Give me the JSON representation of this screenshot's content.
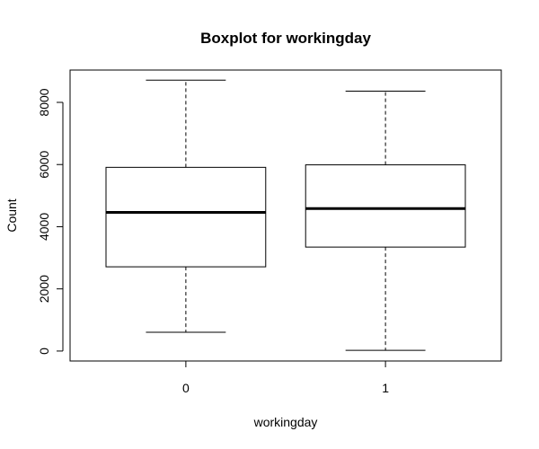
{
  "chart_data": {
    "type": "boxplot",
    "title": "Boxplot for workingday",
    "xlabel": "workingday",
    "ylabel": "Count",
    "categories": [
      "0",
      "1"
    ],
    "boxes": [
      {
        "category": "0",
        "whisker_low": 605,
        "q1": 2710,
        "median": 4460,
        "q3": 5910,
        "whisker_high": 8714
      },
      {
        "category": "1",
        "whisker_low": 22,
        "q1": 3345,
        "median": 4585,
        "q3": 5990,
        "whisker_high": 8362
      }
    ],
    "yticks": [
      0,
      2000,
      4000,
      6000,
      8000
    ],
    "ytick_labels": [
      "0",
      "2000",
      "4000",
      "6000",
      "8000"
    ],
    "ylim": [
      -320,
      9040
    ],
    "grid": false,
    "legend": "none"
  }
}
